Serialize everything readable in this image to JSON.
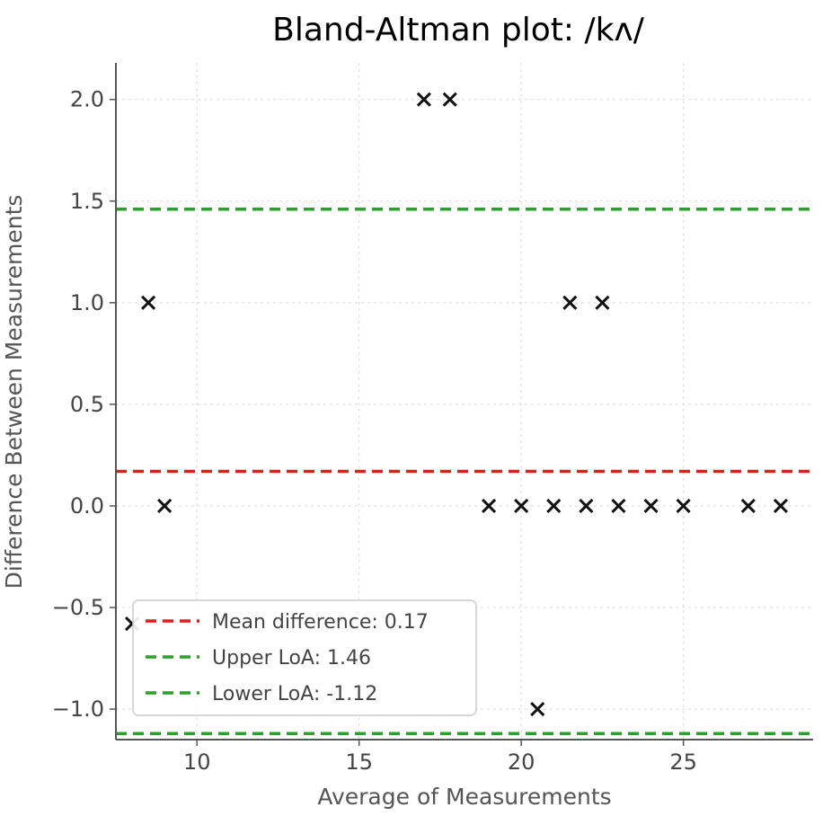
{
  "chart_data": {
    "type": "scatter",
    "title": "Bland-Altman plot: /kʌ/",
    "xlabel": "Average of Measurements",
    "ylabel": "Difference Between Measurements",
    "xlim": [
      7.5,
      29.0
    ],
    "ylim": [
      -1.15,
      2.18
    ],
    "xticks": [
      10,
      15,
      20,
      25
    ],
    "yticks": [
      -1.0,
      -0.5,
      0.0,
      0.5,
      1.0,
      1.5,
      2.0
    ],
    "ytick_labels": [
      "−1.0",
      "−0.5",
      "0.0",
      "0.5",
      "1.0",
      "1.5",
      "2.0"
    ],
    "grid": true,
    "legend_position": "lower-left",
    "marker": "x",
    "points": [
      {
        "x": 8.0,
        "y": -0.58
      },
      {
        "x": 8.5,
        "y": 1.0
      },
      {
        "x": 9.0,
        "y": 0.0
      },
      {
        "x": 17.0,
        "y": 2.0
      },
      {
        "x": 17.8,
        "y": 2.0
      },
      {
        "x": 19.0,
        "y": 0.0
      },
      {
        "x": 20.0,
        "y": 0.0
      },
      {
        "x": 20.5,
        "y": -1.0
      },
      {
        "x": 21.0,
        "y": 0.0
      },
      {
        "x": 21.5,
        "y": 1.0
      },
      {
        "x": 22.0,
        "y": 0.0
      },
      {
        "x": 22.5,
        "y": 1.0
      },
      {
        "x": 23.0,
        "y": 0.0
      },
      {
        "x": 24.0,
        "y": 0.0
      },
      {
        "x": 25.0,
        "y": 0.0
      },
      {
        "x": 27.0,
        "y": 0.0
      },
      {
        "x": 28.0,
        "y": 0.0
      }
    ],
    "reference_lines": [
      {
        "name": "Mean difference: 0.17",
        "y": 0.17,
        "color": "#e41a1c"
      },
      {
        "name": "Upper LoA: 1.46",
        "y": 1.46,
        "color": "#2ca02c"
      },
      {
        "name": "Lower LoA: -1.12",
        "y": -1.12,
        "color": "#2ca02c"
      }
    ]
  }
}
